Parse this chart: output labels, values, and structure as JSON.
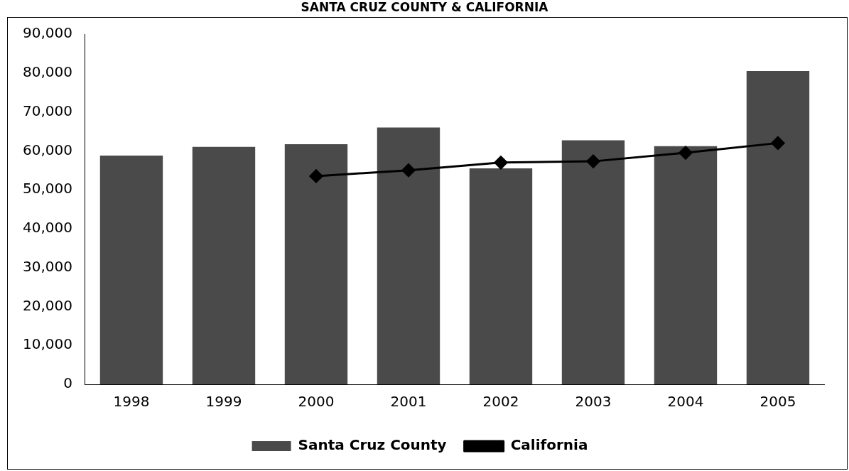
{
  "chart_data": {
    "type": "bar",
    "title": "SANTA CRUZ COUNTY & CALIFORNIA",
    "categories": [
      "1998",
      "1999",
      "2000",
      "2001",
      "2002",
      "2003",
      "2004",
      "2005"
    ],
    "series": [
      {
        "name": "Santa Cruz County",
        "color": "#4a4a4a",
        "values": [
          58800,
          61000,
          61700,
          66000,
          55500,
          62700,
          61200,
          80500
        ]
      },
      {
        "name": "California",
        "type": "line",
        "color": "#000000",
        "marker": "diamond",
        "values": [
          null,
          null,
          53500,
          55000,
          57000,
          57300,
          59500,
          62000
        ]
      }
    ],
    "ylim": [
      0,
      90000
    ],
    "yticks": [
      {
        "value": 0,
        "label": "0"
      },
      {
        "value": 10000,
        "label": "10,000"
      },
      {
        "value": 20000,
        "label": "20,000"
      },
      {
        "value": 30000,
        "label": "30,000"
      },
      {
        "value": 40000,
        "label": "40,000"
      },
      {
        "value": 50000,
        "label": "50,000"
      },
      {
        "value": 60000,
        "label": "60,000"
      },
      {
        "value": 70000,
        "label": "70,000"
      },
      {
        "value": 80000,
        "label": "80,000"
      },
      {
        "value": 90000,
        "label": "90,000"
      }
    ],
    "grid": false,
    "legend": "bottom"
  }
}
